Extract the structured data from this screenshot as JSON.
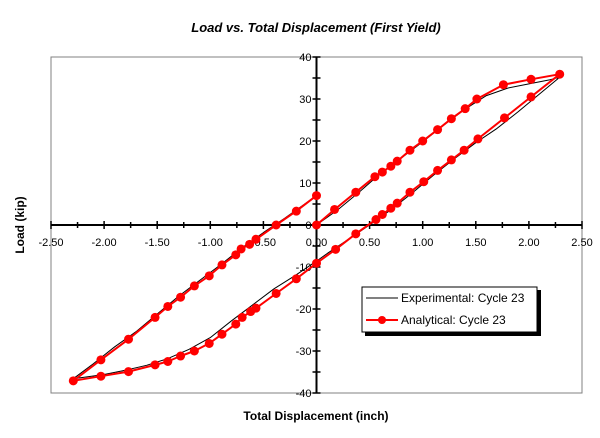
{
  "chart_data": {
    "type": "line",
    "title": "Load vs. Total Displacement (First Yield)",
    "xlabel": "Total Displacement (inch)",
    "ylabel": "Load (kip)",
    "xlim": [
      -2.5,
      2.5
    ],
    "ylim": [
      -40,
      40
    ],
    "xticks": [
      "-2.50",
      "-2.00",
      "-1.50",
      "-1.00",
      "-0.50",
      "0.00",
      "0.50",
      "1.00",
      "1.50",
      "2.00",
      "2.50"
    ],
    "yticks": [
      "-40",
      "-30",
      "-20",
      "-10",
      "0",
      "10",
      "20",
      "30",
      "40"
    ],
    "grid": false,
    "legend_position": "lower-right",
    "series": [
      {
        "name": "Experimental: Cycle 23",
        "color": "#000000",
        "marker": "none",
        "points": [
          [
            0,
            0
          ],
          [
            0.2,
            3.6
          ],
          [
            0.4,
            7.8
          ],
          [
            0.6,
            12.2
          ],
          [
            0.8,
            16.0
          ],
          [
            1.0,
            19.8
          ],
          [
            1.2,
            23.8
          ],
          [
            1.4,
            27.6
          ],
          [
            1.6,
            30.8
          ],
          [
            1.8,
            32.6
          ],
          [
            2.0,
            33.6
          ],
          [
            2.2,
            34.6
          ],
          [
            2.29,
            35.2
          ],
          [
            2.1,
            31.2
          ],
          [
            1.9,
            27.0
          ],
          [
            1.7,
            23.0
          ],
          [
            1.5,
            19.6
          ],
          [
            1.3,
            15.8
          ],
          [
            1.1,
            11.8
          ],
          [
            0.9,
            7.6
          ],
          [
            0.7,
            3.6
          ],
          [
            0.5,
            0
          ],
          [
            0.3,
            -3.4
          ],
          [
            0.1,
            -6.8
          ],
          [
            0,
            -8.6
          ],
          [
            -0.2,
            -12.0
          ],
          [
            -0.4,
            -15.2
          ],
          [
            -0.6,
            -19.0
          ],
          [
            -0.8,
            -22.8
          ],
          [
            -1.0,
            -26.8
          ],
          [
            -1.2,
            -29.6
          ],
          [
            -1.4,
            -31.8
          ],
          [
            -1.6,
            -33.4
          ],
          [
            -1.8,
            -34.6
          ],
          [
            -2.0,
            -35.6
          ],
          [
            -2.29,
            -36.6
          ],
          [
            -2.1,
            -33.0
          ],
          [
            -1.9,
            -29.0
          ],
          [
            -1.7,
            -25.4
          ],
          [
            -1.5,
            -21.2
          ],
          [
            -1.3,
            -17.0
          ],
          [
            -1.1,
            -13.2
          ],
          [
            -0.9,
            -9.4
          ],
          [
            -0.7,
            -5.4
          ],
          [
            -0.5,
            -1.8
          ],
          [
            -0.3,
            1.6
          ],
          [
            -0.1,
            5.2
          ],
          [
            0,
            7.0
          ]
        ]
      },
      {
        "name": "Analytical: Cycle 23",
        "color": "#ff0000",
        "marker": "circle",
        "points": [
          [
            0,
            0
          ],
          [
            0.17,
            3.7
          ],
          [
            0.37,
            7.8
          ],
          [
            0.55,
            11.5
          ],
          [
            0.62,
            12.6
          ],
          [
            0.7,
            14.0
          ],
          [
            0.76,
            15.2
          ],
          [
            0.88,
            17.8
          ],
          [
            1.0,
            20.0
          ],
          [
            1.14,
            22.7
          ],
          [
            1.27,
            25.3
          ],
          [
            1.4,
            27.7
          ],
          [
            1.51,
            30.0
          ],
          [
            1.76,
            33.4
          ],
          [
            2.02,
            34.7
          ],
          [
            2.29,
            35.9
          ],
          [
            2.02,
            30.5
          ],
          [
            1.77,
            25.5
          ],
          [
            1.52,
            20.5
          ],
          [
            1.39,
            17.8
          ],
          [
            1.27,
            15.5
          ],
          [
            1.14,
            13.0
          ],
          [
            1.01,
            10.3
          ],
          [
            0.88,
            7.8
          ],
          [
            0.76,
            5.2
          ],
          [
            0.7,
            4.0
          ],
          [
            0.62,
            2.5
          ],
          [
            0.56,
            1.3
          ],
          [
            0.37,
            -2.1
          ],
          [
            0.18,
            -5.8
          ],
          [
            0,
            -9.1
          ],
          [
            -0.19,
            -12.8
          ],
          [
            -0.38,
            -16.3
          ],
          [
            -0.57,
            -19.8
          ],
          [
            -0.62,
            -20.6
          ],
          [
            -0.7,
            -22.0
          ],
          [
            -0.76,
            -23.6
          ],
          [
            -0.89,
            -26.0
          ],
          [
            -1.01,
            -28.2
          ],
          [
            -1.15,
            -30.0
          ],
          [
            -1.28,
            -31.2
          ],
          [
            -1.4,
            -32.5
          ],
          [
            -1.52,
            -33.3
          ],
          [
            -1.77,
            -34.9
          ],
          [
            -2.03,
            -36.0
          ],
          [
            -2.29,
            -37.1
          ],
          [
            -2.03,
            -32.1
          ],
          [
            -1.77,
            -27.2
          ],
          [
            -1.52,
            -22.0
          ],
          [
            -1.4,
            -19.4
          ],
          [
            -1.28,
            -17.2
          ],
          [
            -1.15,
            -14.5
          ],
          [
            -1.01,
            -12.1
          ],
          [
            -0.89,
            -9.5
          ],
          [
            -0.76,
            -7.1
          ],
          [
            -0.71,
            -5.7
          ],
          [
            -0.63,
            -4.6
          ],
          [
            -0.57,
            -3.4
          ],
          [
            -0.38,
            0
          ],
          [
            -0.19,
            3.3
          ],
          [
            0,
            7.0
          ]
        ]
      }
    ]
  }
}
